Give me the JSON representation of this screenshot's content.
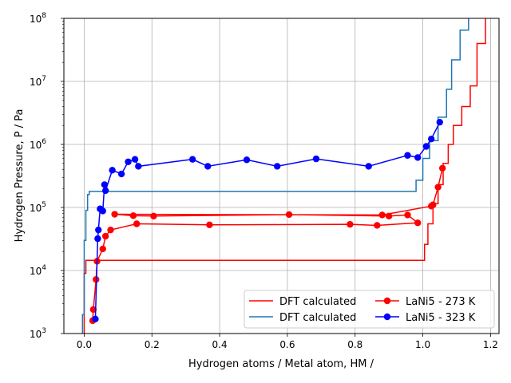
{
  "chart_data": {
    "type": "line",
    "xlabel": "Hydrogen atoms / Metal atom, HM /",
    "ylabel": "Hydrogen Pressure, P / Pa",
    "xlim": [
      -0.06,
      1.225
    ],
    "ylim_exponent": [
      3,
      8
    ],
    "yscale": "log",
    "grid": true,
    "legend_placement": "lower right",
    "x_ticks": [
      {
        "value": 0.0,
        "label": "0.0"
      },
      {
        "value": 0.2,
        "label": "0.2"
      },
      {
        "value": 0.4,
        "label": "0.4"
      },
      {
        "value": 0.6,
        "label": "0.6"
      },
      {
        "value": 0.8,
        "label": "0.8"
      },
      {
        "value": 1.0,
        "label": "1.0"
      },
      {
        "value": 1.2,
        "label": "1.2"
      }
    ],
    "y_ticks": [
      {
        "exp": 3,
        "base": "10",
        "sup": "3"
      },
      {
        "exp": 4,
        "base": "10",
        "sup": "4"
      },
      {
        "exp": 5,
        "base": "10",
        "sup": "5"
      },
      {
        "exp": 6,
        "base": "10",
        "sup": "6"
      },
      {
        "exp": 7,
        "base": "10",
        "sup": "7"
      },
      {
        "exp": 8,
        "base": "10",
        "sup": "8"
      }
    ],
    "series": [
      {
        "name": "DFT calculated",
        "color": "#ff0000",
        "style": "step",
        "points": [
          [
            0.0,
            1000
          ],
          [
            0.0,
            9000
          ],
          [
            0.005,
            9000
          ],
          [
            0.005,
            14500
          ],
          [
            1.005,
            14500
          ],
          [
            1.005,
            26000
          ],
          [
            1.015,
            26000
          ],
          [
            1.015,
            55000
          ],
          [
            1.03,
            55000
          ],
          [
            1.03,
            115000
          ],
          [
            1.045,
            115000
          ],
          [
            1.045,
            230000
          ],
          [
            1.06,
            230000
          ],
          [
            1.06,
            500000
          ],
          [
            1.075,
            500000
          ],
          [
            1.075,
            1000000
          ],
          [
            1.09,
            1000000
          ],
          [
            1.09,
            2000000
          ],
          [
            1.115,
            2000000
          ],
          [
            1.115,
            4000000
          ],
          [
            1.14,
            4000000
          ],
          [
            1.14,
            8500000
          ],
          [
            1.16,
            8500000
          ],
          [
            1.16,
            40000000
          ],
          [
            1.185,
            40000000
          ],
          [
            1.185,
            100000000
          ]
        ]
      },
      {
        "name": "DFT calculated",
        "color": "#1f77b4",
        "style": "step",
        "points": [
          [
            -0.005,
            1000
          ],
          [
            -0.005,
            2000
          ],
          [
            0.0,
            2000
          ],
          [
            0.0,
            30000
          ],
          [
            0.005,
            30000
          ],
          [
            0.005,
            90000
          ],
          [
            0.01,
            90000
          ],
          [
            0.01,
            160000
          ],
          [
            0.015,
            160000
          ],
          [
            0.015,
            180000
          ],
          [
            0.98,
            180000
          ],
          [
            0.98,
            270000
          ],
          [
            1.0,
            270000
          ],
          [
            1.0,
            600000
          ],
          [
            1.02,
            600000
          ],
          [
            1.02,
            1150000
          ],
          [
            1.045,
            1150000
          ],
          [
            1.045,
            2700000
          ],
          [
            1.07,
            2700000
          ],
          [
            1.07,
            7500000
          ],
          [
            1.085,
            7500000
          ],
          [
            1.085,
            22000000
          ],
          [
            1.11,
            22000000
          ],
          [
            1.11,
            65000000
          ],
          [
            1.135,
            65000000
          ],
          [
            1.135,
            100000000
          ]
        ]
      },
      {
        "name": "LaNi5 - 273 K",
        "color": "#ff0000",
        "style": "marker",
        "points": [
          [
            0.025,
            1600
          ],
          [
            0.027,
            2400
          ],
          [
            0.035,
            7200
          ],
          [
            0.038,
            14000
          ],
          [
            0.055,
            22000
          ],
          [
            0.063,
            35000
          ],
          [
            0.078,
            44000
          ],
          [
            0.155,
            55000
          ],
          [
            0.37,
            53000
          ],
          [
            0.785,
            54000
          ],
          [
            0.865,
            52000
          ],
          [
            0.985,
            57000
          ],
          [
            0.955,
            76000
          ],
          [
            0.9,
            73000
          ],
          [
            0.605,
            77000
          ],
          [
            0.205,
            73000
          ],
          [
            0.145,
            74000
          ],
          [
            0.09,
            78000
          ],
          [
            0.88,
            76000
          ],
          [
            1.025,
            105000
          ],
          [
            1.03,
            110000
          ],
          [
            1.045,
            210000
          ],
          [
            1.058,
            420000
          ]
        ]
      },
      {
        "name": "LaNi5 - 323 K",
        "color": "#0000ff",
        "style": "marker",
        "points": [
          [
            0.033,
            1700
          ],
          [
            0.04,
            32000
          ],
          [
            0.042,
            44000
          ],
          [
            0.047,
            95000
          ],
          [
            0.055,
            88000
          ],
          [
            0.06,
            230000
          ],
          [
            0.063,
            185000
          ],
          [
            0.083,
            390000
          ],
          [
            0.11,
            340000
          ],
          [
            0.13,
            530000
          ],
          [
            0.15,
            580000
          ],
          [
            0.16,
            450000
          ],
          [
            0.32,
            580000
          ],
          [
            0.365,
            450000
          ],
          [
            0.48,
            570000
          ],
          [
            0.57,
            450000
          ],
          [
            0.685,
            590000
          ],
          [
            0.84,
            450000
          ],
          [
            0.955,
            670000
          ],
          [
            0.985,
            620000
          ],
          [
            1.01,
            930000
          ],
          [
            1.025,
            1220000
          ],
          [
            1.05,
            2250000
          ]
        ]
      }
    ]
  }
}
